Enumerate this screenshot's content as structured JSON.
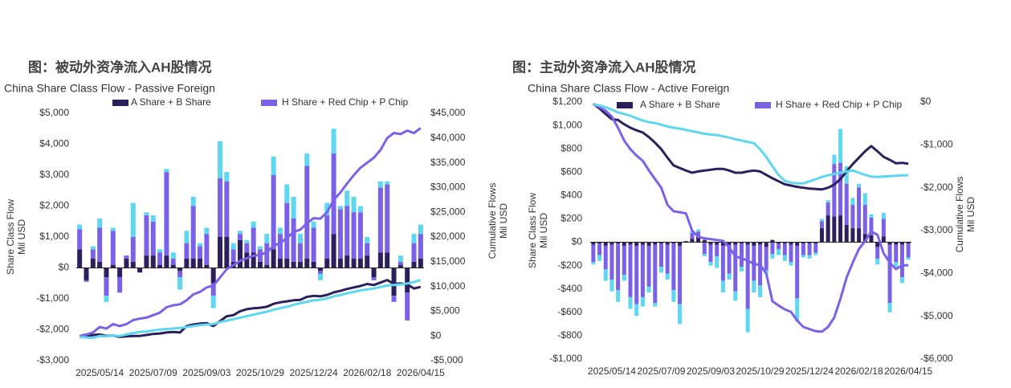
{
  "chart_data": [
    {
      "type": "bar",
      "stacked": true,
      "title": "图：被动外资净流入AH股情况",
      "subtitle": "China Share Class Flow - Passive Foreign",
      "y_label": [
        "Share Class Flow",
        "Mil USD"
      ],
      "y2_label": [
        "Cumulative Flows",
        "Mil USD"
      ],
      "categories": [
        null,
        null,
        null,
        "2025/05/14",
        null,
        null,
        null,
        null,
        null,
        null,
        null,
        "2025/07/09",
        null,
        null,
        null,
        null,
        null,
        null,
        null,
        "2025/09/03",
        null,
        null,
        null,
        null,
        null,
        null,
        null,
        "2025/10/29",
        null,
        null,
        null,
        null,
        null,
        null,
        null,
        "2025/12/24",
        null,
        null,
        null,
        null,
        null,
        null,
        null,
        "2026/02/18",
        null,
        null,
        null,
        null,
        null,
        null,
        null,
        "2026/04/15"
      ],
      "ylim": [
        -3000,
        5000
      ],
      "yticks": [
        {
          "value": -3000,
          "label": "-$3,000"
        },
        {
          "value": -2000,
          "label": "-$2,000"
        },
        {
          "value": -1000,
          "label": "-$1,000"
        },
        {
          "value": 0,
          "label": "$0"
        },
        {
          "value": 1000,
          "label": "$1,000"
        },
        {
          "value": 2000,
          "label": "$2,000"
        },
        {
          "value": 3000,
          "label": "$3,000"
        },
        {
          "value": 4000,
          "label": "$4,000"
        },
        {
          "value": 5000,
          "label": "$5,000"
        }
      ],
      "y2lim": [
        -5000,
        45000
      ],
      "y2ticks": [
        {
          "value": -5000,
          "label": "-$5,000"
        },
        {
          "value": 0,
          "label": "$0"
        },
        {
          "value": 5000,
          "label": "$5,000"
        },
        {
          "value": 10000,
          "label": "$10,000"
        },
        {
          "value": 15000,
          "label": "$15,000"
        },
        {
          "value": 20000,
          "label": "$20,000"
        },
        {
          "value": 25000,
          "label": "$25,000"
        },
        {
          "value": 30000,
          "label": "$30,000"
        },
        {
          "value": 35000,
          "label": "$35,000"
        },
        {
          "value": 40000,
          "label": "$40,000"
        },
        {
          "value": 45000,
          "label": "$45,000"
        }
      ],
      "series": [
        {
          "name": "A Share + B Share",
          "color": "#2b1f5c",
          "values": [
            600,
            -400,
            300,
            200,
            -300,
            100,
            -300,
            300,
            200,
            -150,
            400,
            400,
            100,
            400,
            100,
            -100,
            300,
            300,
            300,
            100,
            -500,
            1000,
            1000,
            200,
            900,
            500,
            500,
            200,
            100,
            600,
            300,
            300,
            200,
            200,
            300,
            200,
            -100,
            300,
            1100,
            300,
            400,
            300,
            300,
            400,
            -300,
            500,
            500,
            -900,
            100,
            -800,
            200,
            300
          ]
        },
        {
          "name": "H Share + Red Chip + P Chip",
          "color": "#7b61e8",
          "values": [
            650,
            -50,
            300,
            1100,
            -600,
            1100,
            -500,
            100,
            800,
            0,
            1300,
            1100,
            400,
            2700,
            200,
            -200,
            500,
            1700,
            400,
            1000,
            -400,
            1900,
            1800,
            400,
            200,
            300,
            800,
            400,
            700,
            2400,
            800,
            1800,
            1400,
            600,
            3000,
            1100,
            -100,
            1400,
            2600,
            1600,
            1600,
            1500,
            1500,
            400,
            -100,
            2100,
            2200,
            -200,
            100,
            -900,
            600,
            800
          ]
        },
        {
          "color": "#5ed8f0",
          "values": [
            150,
            0,
            100,
            300,
            -200,
            100,
            0,
            0,
            1100,
            0,
            100,
            200,
            100,
            100,
            200,
            -400,
            400,
            300,
            100,
            200,
            -400,
            1200,
            300,
            200,
            100,
            100,
            200,
            100,
            300,
            600,
            200,
            600,
            700,
            300,
            400,
            200,
            -200,
            400,
            800,
            100,
            500,
            500,
            200,
            200,
            0,
            200,
            100,
            0,
            200,
            0,
            300,
            300
          ]
        },
        {
          "type": "line",
          "axis": "y2",
          "color": "#2b1f5c",
          "values": [
            0,
            -100,
            200,
            300,
            0,
            100,
            -200,
            -100,
            0,
            0,
            200,
            400,
            500,
            700,
            800,
            700,
            2000,
            2300,
            2500,
            2600,
            2000,
            3000,
            4000,
            4200,
            5000,
            5400,
            5600,
            5700,
            5900,
            6500,
            6800,
            7000,
            7200,
            7300,
            7900,
            8100,
            8000,
            8300,
            8800,
            9100,
            9500,
            9800,
            10100,
            10500,
            10300,
            10800,
            11300,
            10500,
            10600,
            10400,
            9600,
            9900
          ]
        },
        {
          "type": "line",
          "axis": "y2",
          "color": "#7b61e8",
          "values": [
            0,
            300,
            700,
            1800,
            1500,
            2400,
            2000,
            2400,
            3200,
            3500,
            3700,
            4200,
            4700,
            5800,
            6200,
            6400,
            7200,
            8400,
            8900,
            9800,
            10200,
            11800,
            13500,
            14300,
            15200,
            15700,
            16200,
            16400,
            16900,
            18200,
            18800,
            19800,
            21000,
            21500,
            22800,
            23800,
            23700,
            25000,
            27500,
            29000,
            30800,
            32500,
            34000,
            35000,
            36000,
            37600,
            40000,
            41000,
            40800,
            41500,
            41000,
            42000
          ]
        },
        {
          "type": "line",
          "axis": "y2",
          "color": "#5ed8f0",
          "values": [
            -200,
            -300,
            -400,
            0,
            -100,
            100,
            0,
            300,
            600,
            800,
            900,
            1100,
            1300,
            1400,
            1500,
            1600,
            1800,
            2000,
            2200,
            2300,
            2400,
            2800,
            3100,
            3400,
            3700,
            4000,
            4300,
            4600,
            4900,
            5300,
            5600,
            5900,
            6300,
            6600,
            6900,
            7200,
            7300,
            7600,
            8000,
            8300,
            8600,
            8900,
            9200,
            9400,
            9600,
            9900,
            10200,
            10300,
            10400,
            10600,
            10900,
            11300
          ]
        }
      ]
    },
    {
      "type": "bar",
      "stacked": true,
      "title": "图：主动外资净流入AH股情况",
      "subtitle": "China Share Class Flow - Active Foreign",
      "y_label": [
        "Share Class Flow",
        "Mil USD"
      ],
      "y2_label": [
        "Cumulative Flows",
        "Mil USD"
      ],
      "categories": [
        null,
        null,
        null,
        "2025/05/14",
        null,
        null,
        null,
        null,
        null,
        null,
        null,
        "2025/07/09",
        null,
        null,
        null,
        null,
        null,
        null,
        null,
        "2025/09/03",
        null,
        null,
        null,
        null,
        null,
        null,
        null,
        "2025/10/29",
        null,
        null,
        null,
        null,
        null,
        null,
        null,
        "2025/12/24",
        null,
        null,
        null,
        null,
        null,
        null,
        null,
        "2026/02/18",
        null,
        null,
        null,
        null,
        null,
        null,
        null,
        "2026/04/15"
      ],
      "ylim": [
        -1000,
        1200
      ],
      "yticks": [
        {
          "value": -1000,
          "label": "-$1,000"
        },
        {
          "value": -800,
          "label": "-$800"
        },
        {
          "value": -600,
          "label": "-$600"
        },
        {
          "value": -400,
          "label": "-$400"
        },
        {
          "value": -200,
          "label": "-$200"
        },
        {
          "value": 0,
          "label": "$0"
        },
        {
          "value": 200,
          "label": "$200"
        },
        {
          "value": 400,
          "label": "$400"
        },
        {
          "value": 600,
          "label": "$600"
        },
        {
          "value": 800,
          "label": "$800"
        },
        {
          "value": 1000,
          "label": "$1,000"
        },
        {
          "value": 1200,
          "label": "$1,200"
        }
      ],
      "y2lim": [
        -6000,
        0
      ],
      "y2ticks": [
        {
          "value": -6000,
          "label": "-$6,000"
        },
        {
          "value": -5000,
          "label": "-$5,000"
        },
        {
          "value": -4000,
          "label": "-$4,000"
        },
        {
          "value": -3000,
          "label": "-$3,000"
        },
        {
          "value": -2000,
          "label": "-$2,000"
        },
        {
          "value": -1000,
          "label": "-$1,000"
        },
        {
          "value": 0,
          "label": "$0"
        }
      ],
      "series": [
        {
          "name": "A Share + B Share",
          "color": "#2b1f5c",
          "values": [
            -20,
            -10,
            -30,
            -20,
            -10,
            -30,
            -20,
            -30,
            -20,
            -30,
            -20,
            -10,
            -20,
            -10,
            -30,
            10,
            30,
            50,
            20,
            -20,
            -20,
            -30,
            -20,
            -20,
            -10,
            -20,
            -30,
            -20,
            -40,
            20,
            -10,
            -10,
            -20,
            -30,
            -10,
            -10,
            -10,
            120,
            230,
            220,
            230,
            150,
            120,
            120,
            70,
            60,
            -40,
            50,
            -20,
            -20,
            -20,
            -10
          ]
        },
        {
          "name": "H Share + Red Chip + P Chip",
          "color": "#7b61e8",
          "values": [
            -150,
            -100,
            -200,
            -300,
            -400,
            -250,
            -450,
            -500,
            -450,
            -350,
            -500,
            -200,
            -250,
            -400,
            -500,
            0,
            50,
            40,
            -100,
            -150,
            -100,
            -300,
            -250,
            -400,
            -200,
            -550,
            -300,
            -350,
            -200,
            -100,
            -50,
            -100,
            -150,
            -450,
            -100,
            -100,
            -80,
            60,
            110,
            450,
            450,
            350,
            200,
            350,
            250,
            150,
            -100,
            150,
            -500,
            -150,
            -280,
            -120
          ]
        },
        {
          "color": "#5ed8f0",
          "values": [
            -20,
            -50,
            -100,
            -100,
            -100,
            -50,
            -100,
            -100,
            -80,
            -50,
            -30,
            -50,
            -50,
            -100,
            -170,
            0,
            20,
            20,
            -20,
            -30,
            -100,
            -100,
            -50,
            -80,
            -40,
            -200,
            -100,
            -100,
            -30,
            -40,
            -50,
            -50,
            -30,
            -200,
            -20,
            -30,
            -20,
            20,
            20,
            80,
            290,
            150,
            60,
            30,
            100,
            30,
            -50,
            50,
            -80,
            -40,
            -50,
            -20
          ]
        },
        {
          "type": "line",
          "axis": "y2",
          "color": "#2b1f5c",
          "values": [
            -40,
            -150,
            -280,
            -400,
            -420,
            -520,
            -600,
            -660,
            -710,
            -820,
            -950,
            -1100,
            -1300,
            -1480,
            -1540,
            -1600,
            -1650,
            -1620,
            -1600,
            -1580,
            -1560,
            -1560,
            -1600,
            -1650,
            -1650,
            -1620,
            -1600,
            -1620,
            -1700,
            -1780,
            -1850,
            -1920,
            -1950,
            -1980,
            -2000,
            -2020,
            -2030,
            -2040,
            -2000,
            -1930,
            -1800,
            -1620,
            -1450,
            -1300,
            -1150,
            -1030,
            -1150,
            -1280,
            -1350,
            -1430,
            -1420,
            -1440
          ]
        },
        {
          "type": "line",
          "axis": "y2",
          "color": "#7b61e8",
          "values": [
            -50,
            -120,
            -200,
            -340,
            -600,
            -900,
            -1100,
            -1250,
            -1370,
            -1600,
            -1800,
            -2000,
            -2400,
            -2550,
            -2570,
            -2600,
            -3000,
            -3150,
            -3180,
            -3200,
            -3220,
            -3240,
            -3400,
            -3600,
            -3650,
            -3700,
            -3780,
            -3800,
            -4000,
            -4650,
            -4750,
            -4840,
            -4900,
            -5100,
            -5250,
            -5300,
            -5350,
            -5360,
            -5250,
            -5030,
            -4600,
            -4100,
            -3750,
            -3430,
            -3250,
            -3020,
            -3100,
            -3530,
            -3750,
            -3900,
            -3810,
            -3810
          ]
        },
        {
          "type": "line",
          "axis": "y2",
          "color": "#5ed8f0",
          "values": [
            -50,
            -80,
            -120,
            -180,
            -240,
            -280,
            -320,
            -380,
            -430,
            -470,
            -490,
            -530,
            -570,
            -600,
            -620,
            -650,
            -680,
            -710,
            -740,
            -760,
            -770,
            -800,
            -830,
            -870,
            -900,
            -930,
            -960,
            -1100,
            -1280,
            -1500,
            -1700,
            -1840,
            -1880,
            -1900,
            -1900,
            -1850,
            -1800,
            -1750,
            -1710,
            -1680,
            -1650,
            -1620,
            -1600,
            -1650,
            -1700,
            -1740,
            -1750,
            -1740,
            -1730,
            -1720,
            -1710,
            -1710
          ]
        }
      ]
    }
  ]
}
